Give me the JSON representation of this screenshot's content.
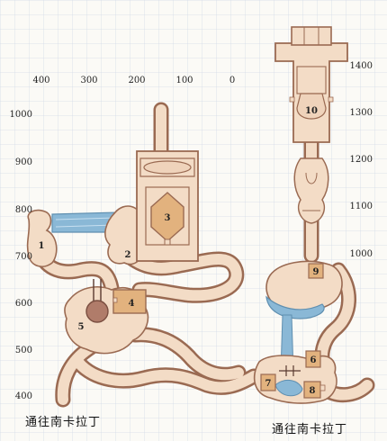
{
  "axis_top": [
    "400",
    "300",
    "200",
    "100",
    "0"
  ],
  "axis_left": [
    "1000",
    "900",
    "800",
    "700",
    "600",
    "500",
    "400"
  ],
  "axis_right": [
    "1400",
    "1300",
    "1200",
    "1100",
    "1000"
  ],
  "rooms": [
    "1",
    "2",
    "3",
    "4",
    "5",
    "6",
    "7",
    "8",
    "9",
    "10"
  ],
  "exits": {
    "left": "通往南卡拉丁",
    "right": "通往南卡拉丁"
  },
  "colors": {
    "paper": "#fbfaf6",
    "grid": "#d4dbe8",
    "cave_fill": "#f3dcc6",
    "cave_edge": "#9a6a52",
    "water": "#8ab8d6",
    "box_fill": "#e2b27e",
    "pit_fill": "#b07c6a"
  }
}
